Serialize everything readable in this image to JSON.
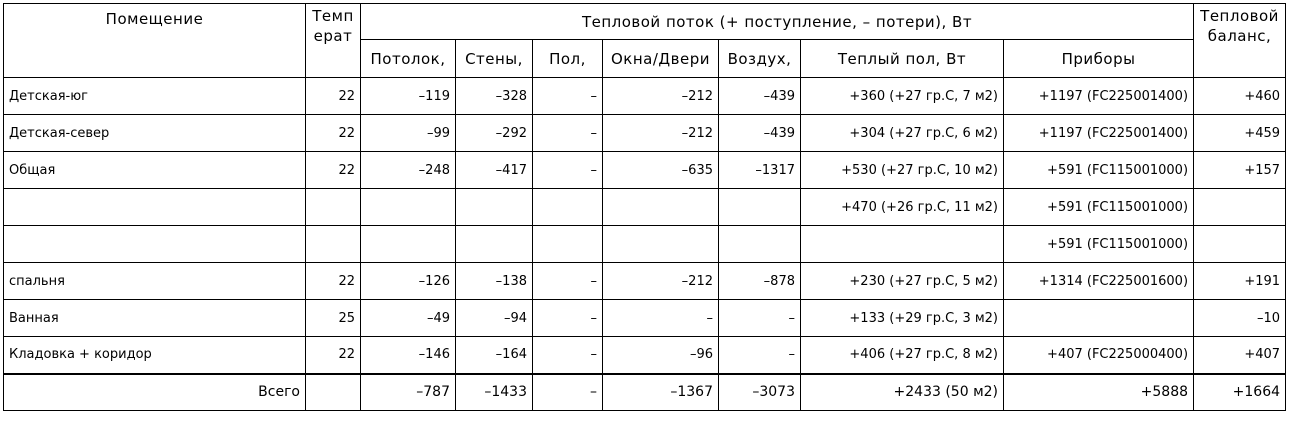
{
  "header": {
    "room": "Помещение",
    "temp": [
      "Темп",
      "ерат"
    ],
    "flow": "Тепловой поток (+ поступление, – потери), Вт",
    "columns": [
      "Потолок,",
      "Стены,",
      "Пол,",
      "Окна/Двери",
      "Воздух,",
      "Теплый пол, Вт",
      "Приборы"
    ],
    "balance": [
      "Тепловой",
      "баланс,"
    ]
  },
  "rows": [
    [
      "Детская-юг",
      "22",
      "–119",
      "–328",
      "–",
      "–212",
      "–439",
      "+360 (+27 гр.С, 7 м2)",
      "+1197 (FC225001400)",
      "+460"
    ],
    [
      "Детская-север",
      "22",
      "–99",
      "–292",
      "–",
      "–212",
      "–439",
      "+304 (+27 гр.С, 6 м2)",
      "+1197 (FC225001400)",
      "+459"
    ],
    [
      "Общая",
      "22",
      "–248",
      "–417",
      "–",
      "–635",
      "–1317",
      "+530 (+27 гр.С, 10 м2)",
      "+591 (FC115001000)",
      "+157"
    ],
    [
      null,
      null,
      null,
      null,
      null,
      null,
      null,
      "+470 (+26 гр.С, 11 м2)",
      "+591 (FC115001000)",
      null
    ],
    [
      null,
      null,
      null,
      null,
      null,
      null,
      null,
      null,
      "+591 (FC115001000)",
      null
    ],
    [
      "спальня",
      "22",
      "–126",
      "–138",
      "–",
      "–212",
      "–878",
      "+230 (+27 гр.С, 5 м2)",
      "+1314 (FC225001600)",
      "+191"
    ],
    [
      "Ванная",
      "25",
      "–49",
      "–94",
      "–",
      "–",
      "–",
      "+133 (+29 гр.С, 3 м2)",
      null,
      "–10"
    ],
    [
      "Кладовка + коридор",
      "22",
      "–146",
      "–164",
      "–",
      "–96",
      "–",
      "+406 (+27 гр.С, 8 м2)",
      "+407 (FC225000400)",
      "+407"
    ]
  ],
  "total": [
    "Всего",
    null,
    "–787",
    "–1433",
    "–",
    "–1367",
    "–3073",
    "+2433 (50 м2)",
    "+5888",
    "+1664"
  ]
}
